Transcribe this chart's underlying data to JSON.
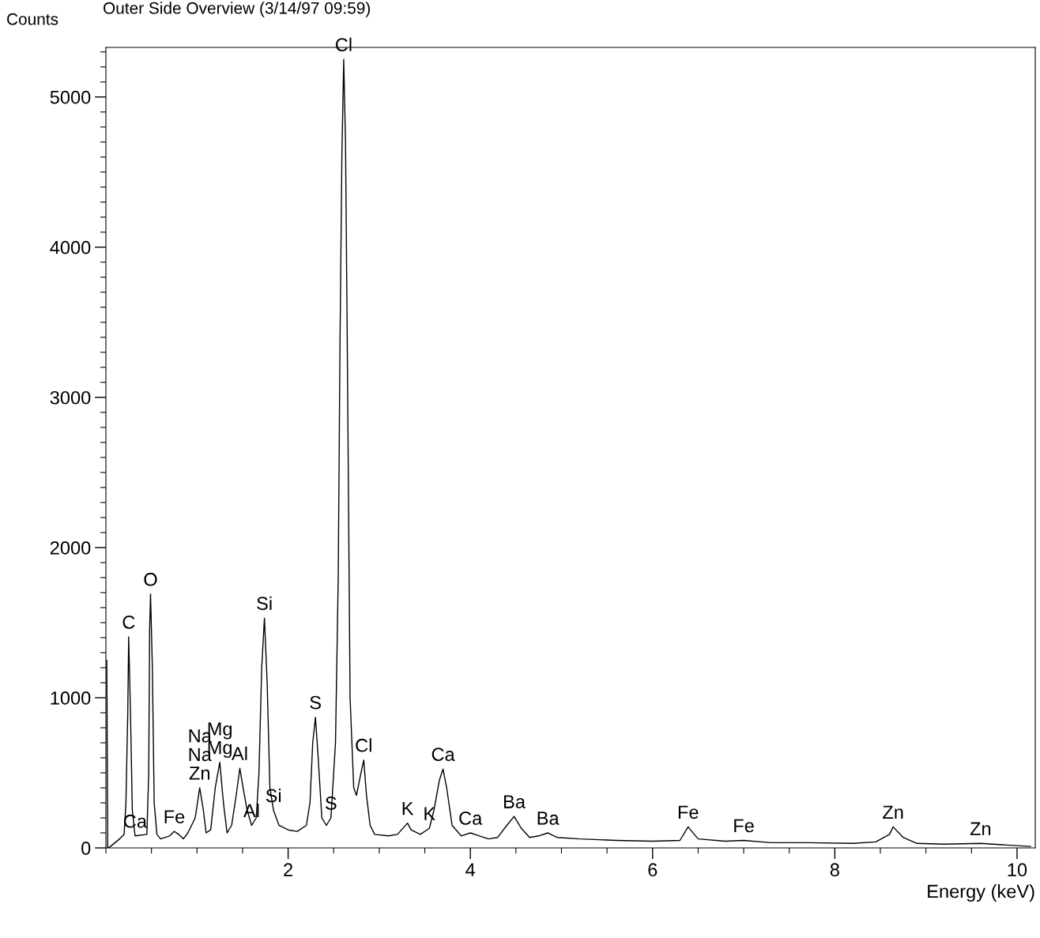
{
  "chart_data": {
    "type": "line",
    "title": "Outer Side Overview (3/14/97 09:59)",
    "ylabel": "Counts",
    "xlabel": "Energy (keV)",
    "series": [
      {
        "color": "#000000",
        "x": [
          0.01,
          0.02,
          0.05,
          0.15,
          0.2,
          0.22,
          0.24,
          0.25,
          0.27,
          0.29,
          0.32,
          0.45,
          0.47,
          0.48,
          0.49,
          0.51,
          0.53,
          0.56,
          0.6,
          0.7,
          0.75,
          0.8,
          0.85,
          0.9,
          0.98,
          1.03,
          1.07,
          1.1,
          1.15,
          1.2,
          1.25,
          1.29,
          1.33,
          1.38,
          1.43,
          1.47,
          1.5,
          1.55,
          1.6,
          1.65,
          1.68,
          1.71,
          1.74,
          1.77,
          1.8,
          1.84,
          1.9,
          2.0,
          2.1,
          2.2,
          2.24,
          2.27,
          2.3,
          2.33,
          2.37,
          2.42,
          2.47,
          2.52,
          2.55,
          2.57,
          2.59,
          2.61,
          2.63,
          2.65,
          2.68,
          2.72,
          2.75,
          2.8,
          2.83,
          2.86,
          2.9,
          2.95,
          3.1,
          3.2,
          3.31,
          3.35,
          3.45,
          3.55,
          3.6,
          3.66,
          3.7,
          3.74,
          3.8,
          3.9,
          4.0,
          4.1,
          4.2,
          4.3,
          4.4,
          4.48,
          4.56,
          4.65,
          4.75,
          4.85,
          4.95,
          5.2,
          5.6,
          6.0,
          6.3,
          6.39,
          6.5,
          6.8,
          7.0,
          7.3,
          7.7,
          8.2,
          8.45,
          8.6,
          8.64,
          8.75,
          8.9,
          9.2,
          9.6,
          10.0,
          10.15
        ],
        "values": [
          1250,
          0,
          10,
          60,
          90,
          300,
          900,
          1405,
          900,
          250,
          80,
          90,
          500,
          1450,
          1690,
          1200,
          300,
          90,
          60,
          80,
          110,
          90,
          60,
          100,
          200,
          400,
          250,
          100,
          120,
          400,
          570,
          300,
          100,
          150,
          350,
          530,
          420,
          250,
          150,
          200,
          500,
          1200,
          1530,
          1100,
          400,
          250,
          150,
          120,
          110,
          150,
          300,
          700,
          870,
          600,
          200,
          150,
          200,
          700,
          1800,
          3400,
          4600,
          5250,
          4700,
          3300,
          1000,
          400,
          350,
          500,
          585,
          350,
          150,
          90,
          80,
          90,
          165,
          120,
          90,
          130,
          250,
          450,
          525,
          400,
          150,
          80,
          100,
          80,
          60,
          70,
          150,
          210,
          130,
          70,
          80,
          100,
          70,
          60,
          50,
          45,
          50,
          140,
          60,
          45,
          50,
          35,
          35,
          30,
          40,
          90,
          140,
          70,
          30,
          25,
          30,
          15,
          10
        ]
      }
    ],
    "xlim": [
      0,
      10.2
    ],
    "ylim": [
      0,
      5330
    ],
    "xticks": [
      2,
      4,
      6,
      8,
      10
    ],
    "yticks": [
      0,
      1000,
      2000,
      3000,
      4000,
      5000
    ],
    "grid": false,
    "legend": false,
    "annotations": [
      {
        "text": "Cl",
        "x": 2.61,
        "y": 5250
      },
      {
        "text": "O",
        "x": 0.49,
        "y": 1690
      },
      {
        "text": "C",
        "x": 0.25,
        "y": 1405
      },
      {
        "text": "Si",
        "x": 1.74,
        "y": 1530
      },
      {
        "text": "Mg",
        "x": 1.25,
        "y": 570
      },
      {
        "text": "Mg",
        "x": 1.25,
        "y": 570
      },
      {
        "text": "Na",
        "x": 1.03,
        "y": 400
      },
      {
        "text": "Na",
        "x": 1.03,
        "y": 400
      },
      {
        "text": "Zn",
        "x": 1.03,
        "y": 400
      },
      {
        "text": "Al",
        "x": 1.47,
        "y": 530
      },
      {
        "text": "Al",
        "x": 1.6,
        "y": 150
      },
      {
        "text": "Si",
        "x": 1.84,
        "y": 250
      },
      {
        "text": "S",
        "x": 2.3,
        "y": 870
      },
      {
        "text": "S",
        "x": 2.47,
        "y": 200
      },
      {
        "text": "Cl",
        "x": 2.83,
        "y": 585
      },
      {
        "text": "K",
        "x": 3.31,
        "y": 165
      },
      {
        "text": "K",
        "x": 3.55,
        "y": 130
      },
      {
        "text": "Ca",
        "x": 3.7,
        "y": 525
      },
      {
        "text": "Ca",
        "x": 4.0,
        "y": 100
      },
      {
        "text": "Ca",
        "x": 0.32,
        "y": 80
      },
      {
        "text": "Fe",
        "x": 0.75,
        "y": 110
      },
      {
        "text": "Ba",
        "x": 4.48,
        "y": 210
      },
      {
        "text": "Ba",
        "x": 4.85,
        "y": 100
      },
      {
        "text": "Fe",
        "x": 6.39,
        "y": 140
      },
      {
        "text": "Fe",
        "x": 7.0,
        "y": 50
      },
      {
        "text": "Zn",
        "x": 8.64,
        "y": 140
      },
      {
        "text": "Zn",
        "x": 9.6,
        "y": 30
      }
    ]
  }
}
